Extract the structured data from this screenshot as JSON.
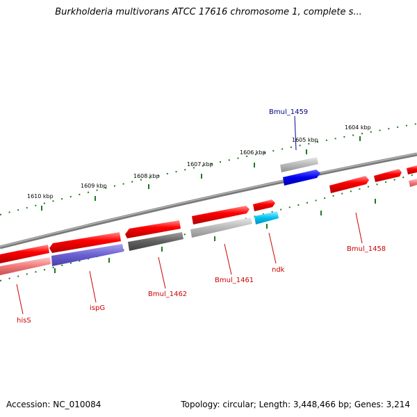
{
  "title": "Burkholderia multivorans ATCC 17616 chromosome 1, complete s...",
  "footer": {
    "accession": "Accession: NC_010084",
    "topology": "Topology: circular; Length: 3,448,466 bp; Genes: 3,214"
  },
  "colors": {
    "backbone": "#808080",
    "tick": "#1a7a1a",
    "forward_gene": "#ff0000",
    "reverse_gene": "#f08080",
    "highlight_label": "#00008b",
    "label": "#cc0000"
  },
  "ticks": [
    {
      "label": "1604 kbp"
    },
    {
      "label": "1605 kbp"
    },
    {
      "label": "1606 kbp"
    },
    {
      "label": "1607 kbp"
    },
    {
      "label": "1608 kbp"
    },
    {
      "label": "1609 kbp"
    },
    {
      "label": "1610 kbp"
    }
  ],
  "genes": [
    {
      "name": "Bmul_1459",
      "label_color": "#00008b"
    },
    {
      "name": "Bmul_1458",
      "label_color": "#cc0000"
    },
    {
      "name": "ndk",
      "label_color": "#cc0000"
    },
    {
      "name": "Bmul_1461",
      "label_color": "#cc0000"
    },
    {
      "name": "Bmul_1462",
      "label_color": "#cc0000"
    },
    {
      "name": "ispG",
      "label_color": "#cc0000"
    },
    {
      "name": "hisS",
      "label_color": "#cc0000"
    }
  ]
}
